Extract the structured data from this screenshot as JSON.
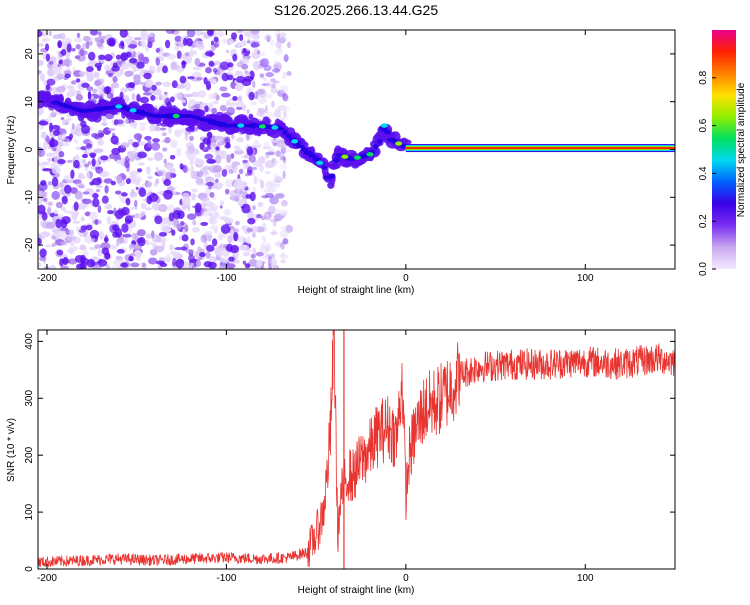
{
  "title": "S126.2025.266.13.44.G25",
  "chart_data": [
    {
      "type": "heatmap",
      "xlabel": "Height of straight line (km)",
      "ylabel": "Frequency (Hz)",
      "xlim": [
        -205,
        150
      ],
      "ylim": [
        -25,
        25
      ],
      "xticks": [
        -200,
        -100,
        0,
        100
      ],
      "yticks": [
        -20,
        -10,
        0,
        10,
        20
      ],
      "colorbar": {
        "label": "Normalized spectral amplitude",
        "range": [
          0,
          1
        ],
        "ticks": [
          "0.0",
          "0.2",
          "0.4",
          "0.6",
          "0.8"
        ],
        "colors": [
          "#f4eaff",
          "#c9a8f0",
          "#7b2ff0",
          "#3a00e8",
          "#0060ff",
          "#00d8f0",
          "#00e060",
          "#90ee00",
          "#ffe000",
          "#ff8000",
          "#ff2000",
          "#e8008a"
        ]
      },
      "ridge": {
        "description_points_x": [
          -205,
          -180,
          -160,
          -140,
          -120,
          -100,
          -85,
          -70,
          -60,
          -50,
          -45,
          -42,
          -38,
          -30,
          -20,
          -14,
          -12,
          -8,
          0,
          50,
          100,
          150
        ],
        "description_points_y": [
          11,
          8,
          9,
          7,
          7,
          5,
          5,
          4.5,
          1,
          -2,
          -4,
          -7,
          -1,
          -2,
          -1,
          2,
          5,
          2,
          0.5,
          0.5,
          0.5,
          0.5
        ]
      },
      "tone": {
        "x_start": 0,
        "x_end": 150,
        "frequency": 0.3
      }
    },
    {
      "type": "line",
      "xlabel": "Height of straight line (km)",
      "ylabel": "SNR (10 * v/v)",
      "xlim": [
        -205,
        150
      ],
      "ylim": [
        0,
        420
      ],
      "xticks": [
        -200,
        -100,
        0,
        100
      ],
      "yticks": [
        0,
        100,
        200,
        300,
        400
      ],
      "series_color": "#e8332f",
      "series": [
        {
          "name": "SNR",
          "x": [
            -205,
            -180,
            -160,
            -140,
            -120,
            -100,
            -80,
            -65,
            -55,
            -50,
            -46,
            -44,
            -42,
            -40,
            -38,
            -36,
            -34,
            -32,
            -30,
            -25,
            -20,
            -15,
            -10,
            -5,
            -2,
            0,
            2,
            5,
            10,
            20,
            30,
            40,
            60,
            80,
            100,
            120,
            140,
            150
          ],
          "y": [
            12,
            15,
            18,
            15,
            18,
            20,
            18,
            20,
            30,
            60,
            100,
            160,
            240,
            420,
            60,
            130,
            150,
            170,
            160,
            190,
            210,
            240,
            250,
            230,
            340,
            130,
            200,
            240,
            280,
            300,
            340,
            355,
            360,
            360,
            365,
            360,
            370,
            365
          ]
        }
      ]
    }
  ]
}
